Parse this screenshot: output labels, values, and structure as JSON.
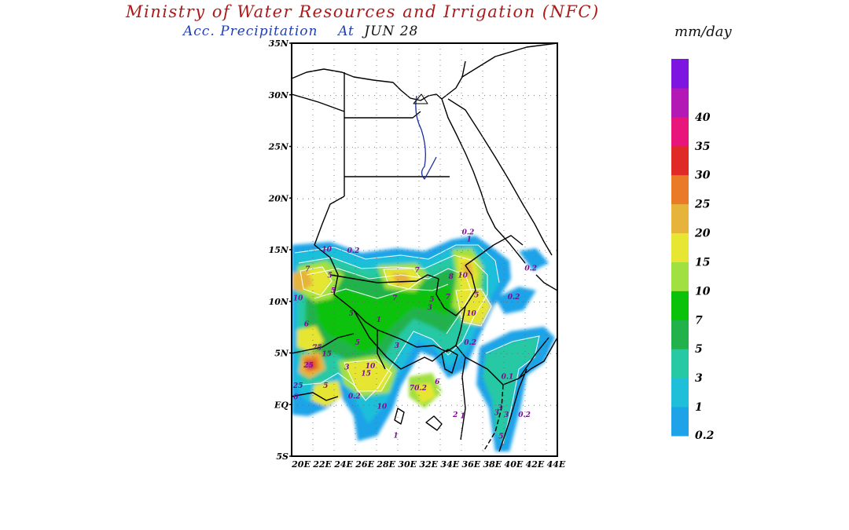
{
  "title": "Ministry of Water Resources and Irrigation (NFC)",
  "subtitle": {
    "product": "Acc. Precipitation",
    "at_label": "At",
    "date": "JUN 28"
  },
  "units": "mm/day",
  "map": {
    "lat_labels": [
      "35N",
      "30N",
      "25N",
      "20N",
      "15N",
      "10N",
      "5N",
      "EQ",
      "5S"
    ],
    "lon_labels": [
      "20E",
      "22E",
      "24E",
      "26E",
      "28E",
      "30E",
      "32E",
      "34E",
      "36E",
      "38E",
      "40E",
      "42E",
      "44E"
    ],
    "lat_range": [
      -5,
      35
    ],
    "lon_range": [
      20,
      45
    ],
    "contour_labels": [
      {
        "text": "10",
        "lon": 23.3,
        "lat": 14.8
      },
      {
        "text": "0.2",
        "lon": 25.8,
        "lat": 14.7
      },
      {
        "text": "0.2",
        "lon": 36.6,
        "lat": 16.5
      },
      {
        "text": "1",
        "lon": 36.7,
        "lat": 15.8
      },
      {
        "text": "7",
        "lon": 21.5,
        "lat": 12.9
      },
      {
        "text": "5",
        "lon": 23.6,
        "lat": 12.3
      },
      {
        "text": "7",
        "lon": 31.8,
        "lat": 12.8
      },
      {
        "text": "8",
        "lon": 35.0,
        "lat": 12.2
      },
      {
        "text": "10",
        "lon": 36.1,
        "lat": 12.3
      },
      {
        "text": "0.2",
        "lon": 42.5,
        "lat": 13.0
      },
      {
        "text": "10",
        "lon": 20.6,
        "lat": 10.1
      },
      {
        "text": "5",
        "lon": 23.9,
        "lat": 10.8
      },
      {
        "text": "7",
        "lon": 29.7,
        "lat": 10.1
      },
      {
        "text": "5",
        "lon": 33.2,
        "lat": 10.0
      },
      {
        "text": "7",
        "lon": 34.7,
        "lat": 10.2
      },
      {
        "text": "5",
        "lon": 37.4,
        "lat": 10.4
      },
      {
        "text": "0.2",
        "lon": 40.9,
        "lat": 10.2
      },
      {
        "text": "5",
        "lon": 25.6,
        "lat": 8.6
      },
      {
        "text": "1",
        "lon": 28.2,
        "lat": 8.0
      },
      {
        "text": "3",
        "lon": 33.0,
        "lat": 9.2
      },
      {
        "text": "10",
        "lon": 36.9,
        "lat": 8.6
      },
      {
        "text": "6",
        "lon": 21.4,
        "lat": 7.6
      },
      {
        "text": "75",
        "lon": 22.4,
        "lat": 5.3
      },
      {
        "text": "15",
        "lon": 23.3,
        "lat": 4.7
      },
      {
        "text": "5",
        "lon": 26.2,
        "lat": 5.8
      },
      {
        "text": "3",
        "lon": 29.9,
        "lat": 5.5
      },
      {
        "text": "0.2",
        "lon": 36.8,
        "lat": 5.8
      },
      {
        "text": "25",
        "lon": 21.6,
        "lat": 3.6
      },
      {
        "text": "3",
        "lon": 25.2,
        "lat": 3.4
      },
      {
        "text": "10",
        "lon": 27.4,
        "lat": 3.5
      },
      {
        "text": "15",
        "lon": 27.0,
        "lat": 2.8
      },
      {
        "text": "25",
        "lon": 20.6,
        "lat": 1.6
      },
      {
        "text": "5",
        "lon": 23.2,
        "lat": 1.6
      },
      {
        "text": "0.2",
        "lon": 25.9,
        "lat": 0.6
      },
      {
        "text": "0",
        "lon": 20.4,
        "lat": 0.5
      },
      {
        "text": "70.2",
        "lon": 31.9,
        "lat": 1.4
      },
      {
        "text": "6",
        "lon": 33.7,
        "lat": 2.0
      },
      {
        "text": "0.1",
        "lon": 40.3,
        "lat": 2.5
      },
      {
        "text": "10",
        "lon": 28.5,
        "lat": -0.4
      },
      {
        "text": "3",
        "lon": 39.6,
        "lat": -0.5
      },
      {
        "text": "2",
        "lon": 35.4,
        "lat": -1.2
      },
      {
        "text": "1",
        "lon": 36.1,
        "lat": -1.3
      },
      {
        "text": "3",
        "lon": 39.3,
        "lat": -1.0
      },
      {
        "text": "3",
        "lon": 40.2,
        "lat": -1.2
      },
      {
        "text": "0.2",
        "lon": 41.9,
        "lat": -1.2
      },
      {
        "text": "1",
        "lon": 29.8,
        "lat": -3.2
      },
      {
        "text": "5",
        "lon": 39.7,
        "lat": -3.3
      }
    ]
  },
  "colorbar": {
    "levels": [
      "0.2",
      "1",
      "3",
      "5",
      "7",
      "10",
      "15",
      "20",
      "25",
      "30",
      "35",
      "40"
    ],
    "colors": [
      "#1fa3e8",
      "#1fbfd9",
      "#26c9a3",
      "#22b24c",
      "#0bc20b",
      "#a0e040",
      "#e6e633",
      "#e6b43a",
      "#e87a28",
      "#e02a28",
      "#e8157a",
      "#b31ab5",
      "#7d16e0"
    ]
  }
}
